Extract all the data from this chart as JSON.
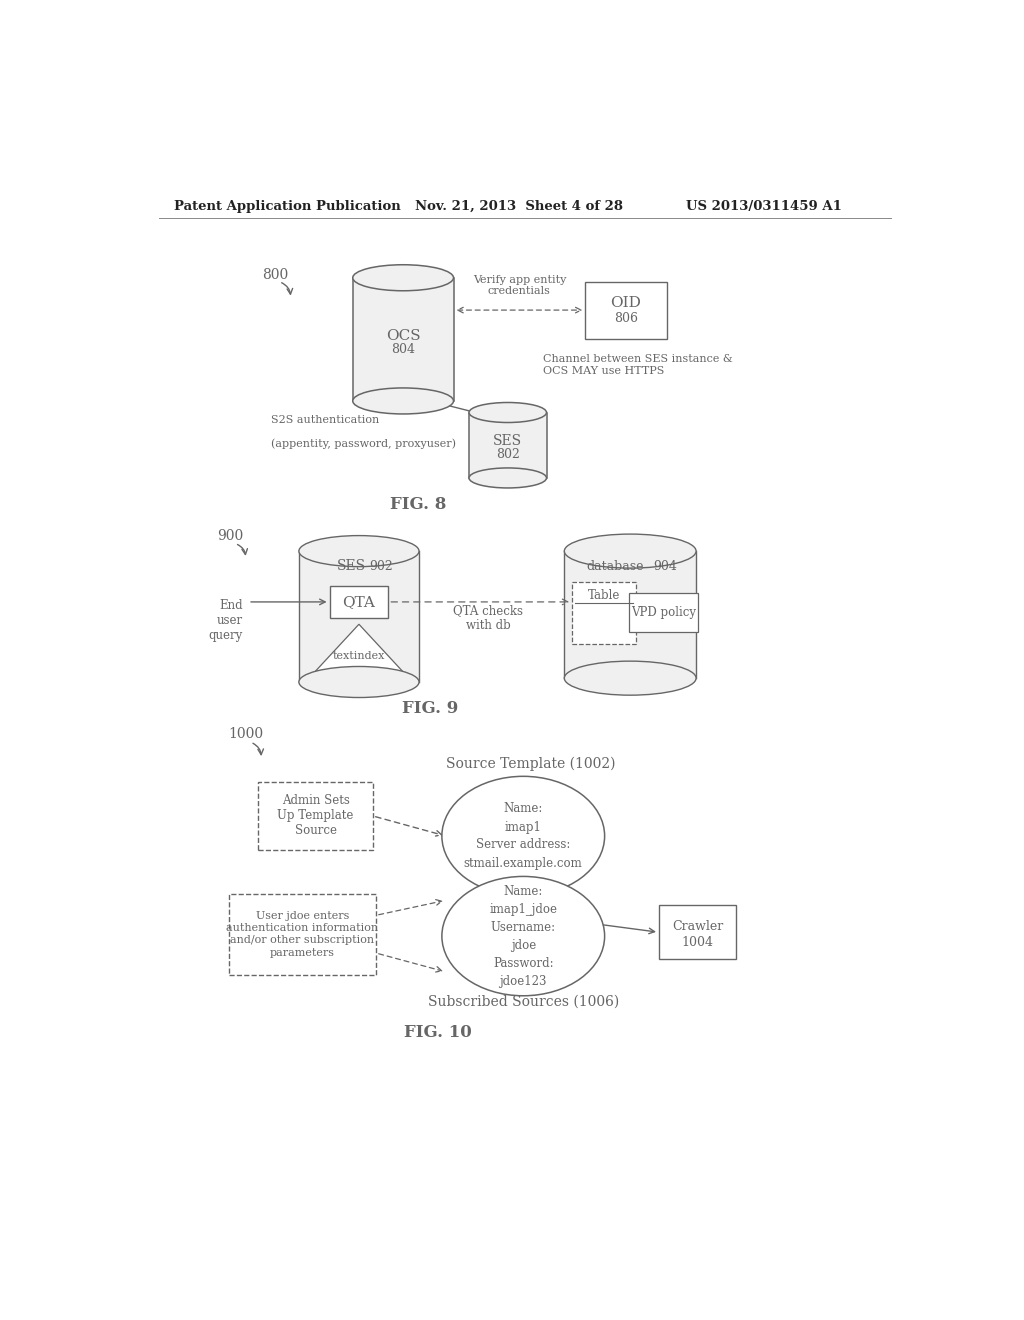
{
  "header_left": "Patent Application Publication",
  "header_mid": "Nov. 21, 2013  Sheet 4 of 28",
  "header_right": "US 2013/0311459 A1",
  "bg_color": "#ffffff",
  "line_color": "#666666",
  "fig8": {
    "label": "800",
    "title": "FIG. 8",
    "ocs_label": "OCS",
    "ocs_num": "804",
    "oid_label": "OID",
    "oid_num": "806",
    "ses_label": "SES",
    "ses_num": "802",
    "arrow1_text": "Verify app entity\ncredentials",
    "arrow2_text": "Channel between SES instance &\nOCS MAY use HTTPS",
    "arrow3_text": "S2S authentication\n\n(appentity, password, proxyuser)"
  },
  "fig9": {
    "label": "900",
    "title": "FIG. 9",
    "ses_label": "SES",
    "ses_num": "902",
    "db_label": "database",
    "db_num": "904",
    "qta_label": "QTA",
    "textindex_label": "textindex",
    "table_label": "Table",
    "vpd_label": "VPD policy",
    "left_text": "End\nuser\nquery",
    "arrow_text": "QTA checks\nwith db"
  },
  "fig10": {
    "label": "1000",
    "title": "FIG. 10",
    "source_template_label": "Source Template (1002)",
    "subscribed_sources_label": "Subscribed Sources (1006)",
    "crawler_label": "Crawler",
    "crawler_num": "1004",
    "ellipse1_text": "Name:\nimap1\nServer address:\nstmail.example.com",
    "ellipse2_text": "Name:\nimap1_jdoe\nUsername:\njdoe\nPassword:\njdoe123",
    "box1_text": "Admin Sets\nUp Template\nSource",
    "box2_text": "User jdoe enters\nauthentication information\nand/or other subscription\nparameters"
  }
}
